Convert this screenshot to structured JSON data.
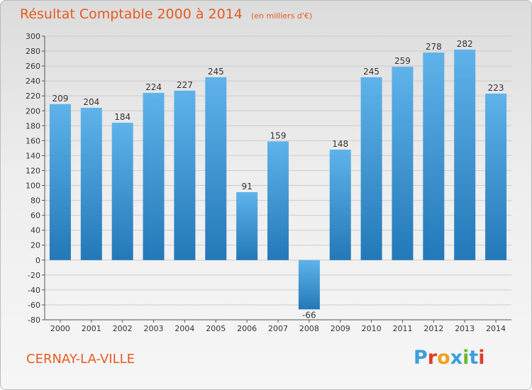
{
  "header": {
    "title": "Résultat Comptable 2000 à 2014",
    "unit": "(en milliers d'€)"
  },
  "footer": {
    "town": "CERNAY-LA-VILLE",
    "logo_letters": [
      "P",
      "r",
      "o",
      "x",
      "i",
      "t",
      "i"
    ]
  },
  "colors": {
    "title": "#e85a20",
    "bar_top": "#5fb3ea",
    "bar_bottom": "#2378b8",
    "grid": "#cccccc",
    "logo": [
      "#3aa0dc",
      "#e03c2c",
      "#f0a020",
      "#3aa0dc",
      "#6cb82c",
      "#3aa0dc",
      "#e03c2c"
    ]
  },
  "chart_data": {
    "type": "bar",
    "categories": [
      "2000",
      "2001",
      "2002",
      "2003",
      "2004",
      "2005",
      "2006",
      "2007",
      "2008",
      "2009",
      "2010",
      "2011",
      "2012",
      "2013",
      "2014"
    ],
    "values": [
      209,
      204,
      184,
      224,
      227,
      245,
      91,
      159,
      -66,
      148,
      245,
      259,
      278,
      282,
      223
    ],
    "ylim": [
      -80,
      300
    ],
    "yticks": [
      -80,
      -60,
      -40,
      -20,
      0,
      20,
      40,
      60,
      80,
      100,
      120,
      140,
      160,
      180,
      200,
      220,
      240,
      260,
      280,
      300
    ],
    "grid": true,
    "data_labels": true
  }
}
